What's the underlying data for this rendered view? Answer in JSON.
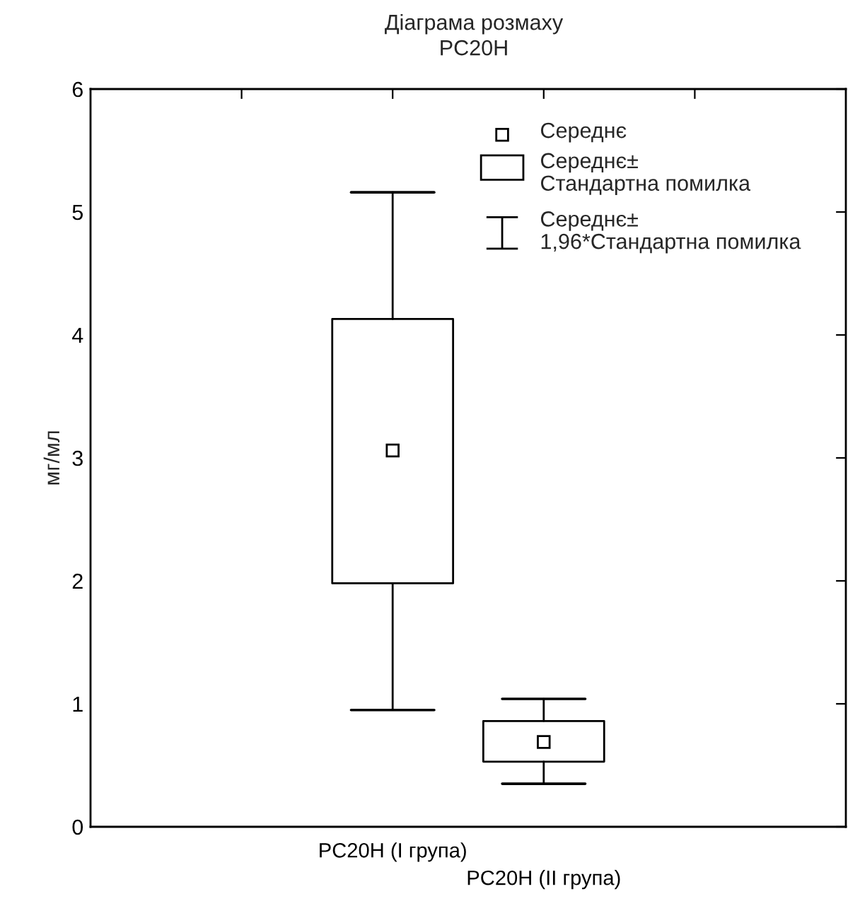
{
  "chart_data": {
    "type": "box",
    "title": "Діаграма розмаху",
    "subtitle": "PC20H",
    "ylabel": "мг/мл",
    "categories": [
      "PC20H (I група)",
      "PC20H (II група)"
    ],
    "boxes": [
      {
        "low": 0.95,
        "q1": 1.98,
        "q3": 4.13,
        "high": 5.16,
        "mean": 3.06
      },
      {
        "low": 0.35,
        "q1": 0.53,
        "q3": 0.86,
        "high": 1.04,
        "mean": 0.69
      }
    ],
    "ylim": [
      0,
      6
    ],
    "yticks": [
      0,
      1,
      2,
      3,
      4,
      5,
      6
    ],
    "grid": false,
    "annotations": [
      "Середнє",
      "Середнє±\nСтандартна помилка",
      "Середнє±\n1,96*Стандартна помилка"
    ]
  }
}
